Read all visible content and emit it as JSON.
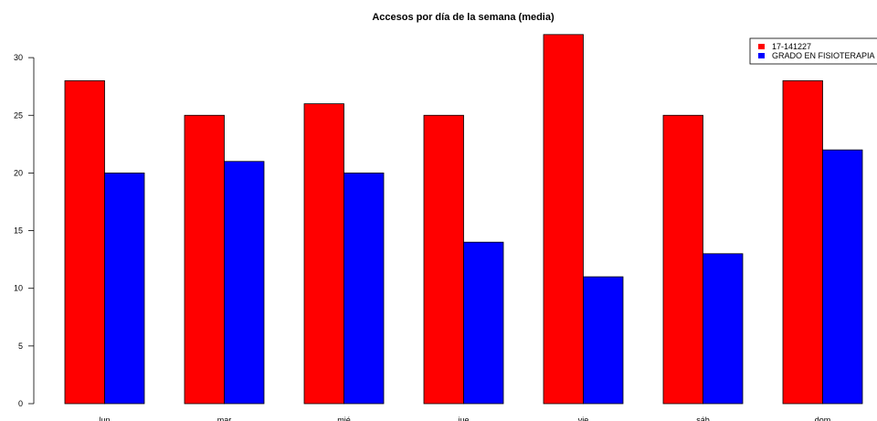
{
  "chart_data": {
    "type": "bar",
    "title": "Accesos por día de la semana (media)",
    "xlabel": "",
    "ylabel": "",
    "categories": [
      "lun",
      "mar",
      "mié",
      "jue",
      "vie",
      "sáb",
      "dom"
    ],
    "series": [
      {
        "name": "17-141227",
        "color": "#ff0000",
        "values": [
          28,
          25,
          26,
          25,
          32,
          25,
          28
        ]
      },
      {
        "name": "GRADO EN FISIOTERAPIA",
        "color": "#0000ff",
        "values": [
          20,
          21,
          20,
          14,
          11,
          13,
          22
        ]
      }
    ],
    "ylim": [
      0,
      30
    ],
    "yticks": [
      0,
      5,
      10,
      15,
      20,
      25,
      30
    ],
    "grid": false,
    "legend_position": "top-right"
  }
}
